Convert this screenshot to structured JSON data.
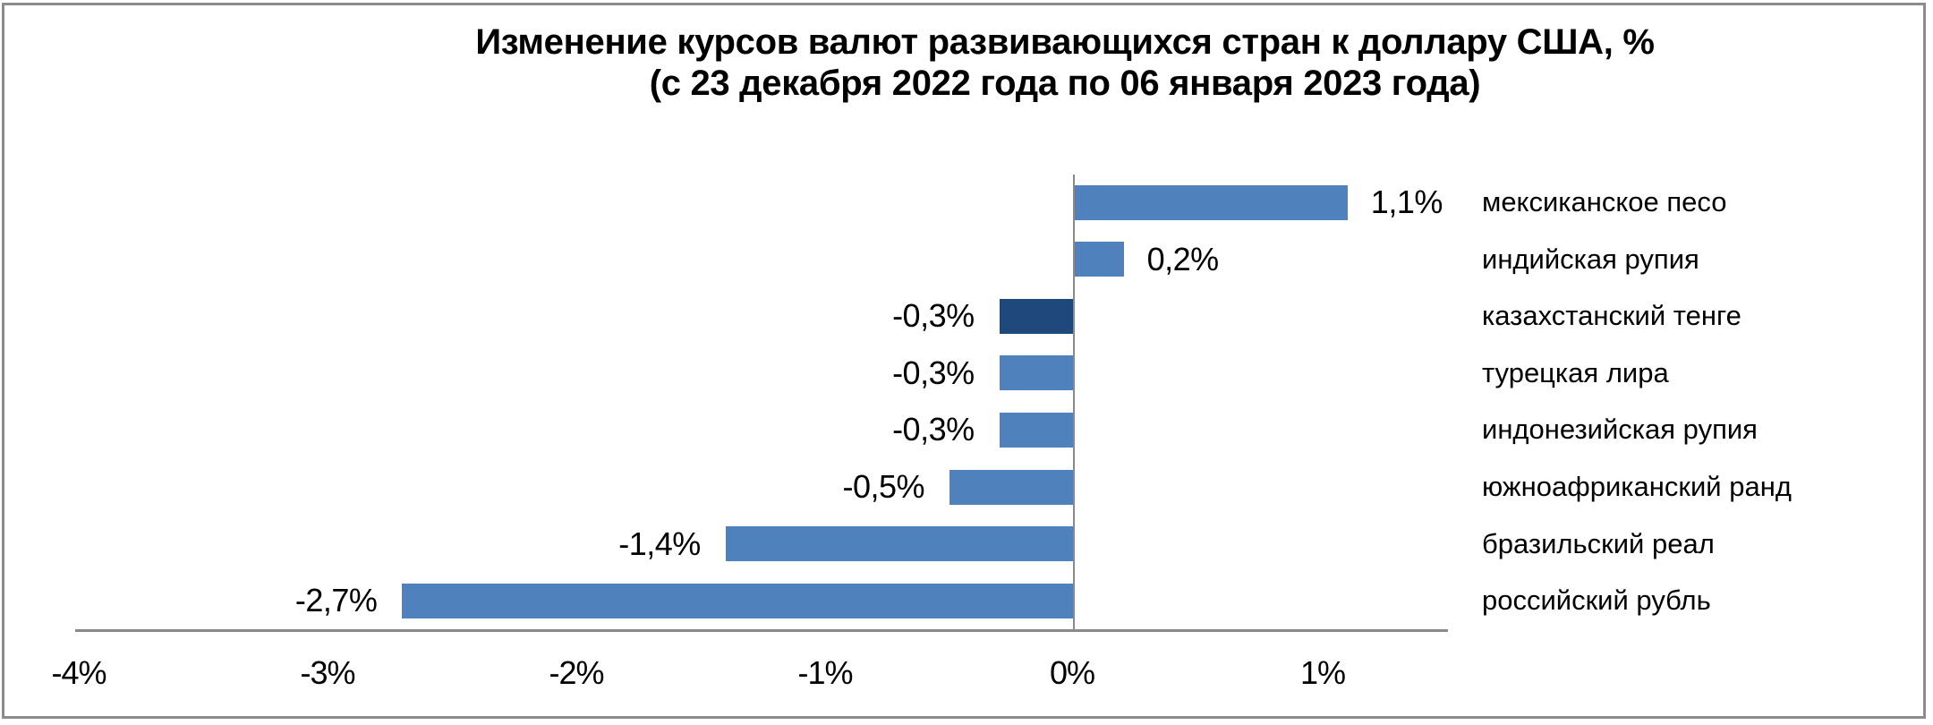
{
  "chart": {
    "title_line1": "Изменение курсов валют развивающихся стран к доллару США, %",
    "title_line2": "(с 23 декабря 2022 года по 06 января 2023 года)",
    "colors": {
      "bar": "#4F81BD",
      "highlight": "#1F497D",
      "axis": "#8a8a8a",
      "border": "#8c8c8c"
    }
  },
  "chart_data": {
    "type": "bar",
    "orientation": "horizontal",
    "title": "Изменение курсов валют развивающихся стран к доллару США, % (с 23 декабря 2022 года по 06 января 2023 года)",
    "xlabel": "",
    "ylabel": "",
    "xlim": [
      -4,
      1.5
    ],
    "grid": false,
    "legend": null,
    "categories": [
      "мексиканское песо",
      "индийская рупия",
      "казахстанский тенге",
      "турецкая лира",
      "индонезийская рупия",
      "южноафриканский ранд",
      "бразильский реал",
      "российский рубль"
    ],
    "values": [
      1.1,
      0.2,
      -0.3,
      -0.3,
      -0.3,
      -0.5,
      -1.4,
      -2.7
    ],
    "value_labels": [
      "1,1%",
      "0,2%",
      "-0,3%",
      "-0,3%",
      "-0,3%",
      "-0,5%",
      "-1,4%",
      "-2,7%"
    ],
    "highlighted_category": "казахстанский тенге",
    "x_ticks": [
      -4,
      -3,
      -2,
      -1,
      0,
      1
    ],
    "x_tick_labels": [
      "-4%",
      "-3%",
      "-2%",
      "-1%",
      "0%",
      "1%"
    ]
  }
}
